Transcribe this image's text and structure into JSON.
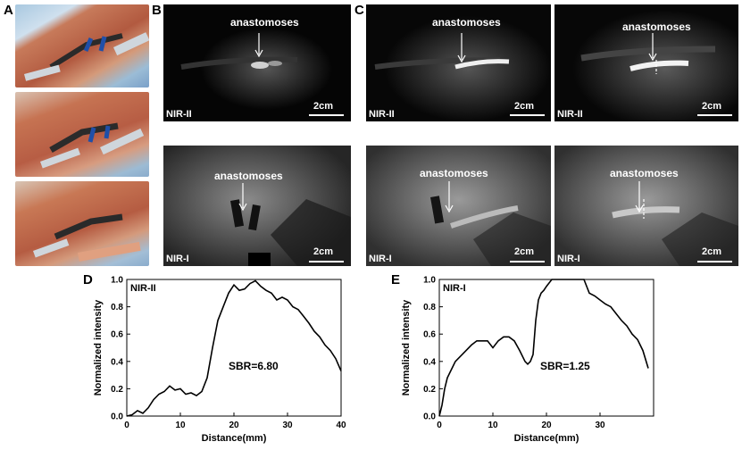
{
  "panel_labels": {
    "a": "A",
    "b": "B",
    "c": "C",
    "d": "D",
    "e": "E"
  },
  "image_panels": {
    "b_top": {
      "annotation": "anastomoses",
      "modality": "NIR-II",
      "scale": "2cm"
    },
    "b_bottom": {
      "annotation": "anastomoses",
      "modality": "NIR-I",
      "scale": "2cm"
    },
    "c1_top": {
      "annotation": "anastomoses",
      "modality": "NIR-II",
      "scale": "2cm"
    },
    "c2_top": {
      "annotation": "anastomoses",
      "modality": "NIR-II",
      "scale": "2cm"
    },
    "c1_bottom": {
      "annotation": "anastomoses",
      "modality": "NIR-I",
      "scale": "2cm"
    },
    "c2_bottom": {
      "annotation": "anastomoses",
      "modality": "NIR-I",
      "scale": "2cm"
    }
  },
  "chart_data": [
    {
      "type": "line",
      "inset_label": "NIR-II",
      "annotation": "SBR=6.80",
      "xlabel": "Distance(mm)",
      "ylabel": "Normalized intensity",
      "xlim": [
        0,
        40
      ],
      "ylim": [
        0,
        1.0
      ],
      "xticks": [
        "0",
        "10",
        "20",
        "30",
        "40"
      ],
      "yticks": [
        "0.0",
        "0.2",
        "0.4",
        "0.6",
        "0.8",
        "1.0"
      ],
      "x": [
        0,
        1,
        2,
        3,
        4,
        5,
        6,
        7,
        8,
        9,
        10,
        11,
        12,
        13,
        14,
        15,
        16,
        17,
        18,
        19,
        20,
        21,
        22,
        23,
        24,
        25,
        26,
        27,
        28,
        29,
        30,
        31,
        32,
        33,
        34,
        35,
        36,
        37,
        38,
        39,
        40
      ],
      "y": [
        0.0,
        0.01,
        0.04,
        0.02,
        0.06,
        0.12,
        0.16,
        0.18,
        0.22,
        0.19,
        0.2,
        0.16,
        0.17,
        0.15,
        0.18,
        0.28,
        0.5,
        0.7,
        0.8,
        0.9,
        0.96,
        0.92,
        0.93,
        0.97,
        0.99,
        0.95,
        0.92,
        0.9,
        0.85,
        0.87,
        0.85,
        0.8,
        0.78,
        0.73,
        0.68,
        0.62,
        0.58,
        0.52,
        0.48,
        0.42,
        0.33
      ]
    },
    {
      "type": "line",
      "inset_label": "NIR-I",
      "annotation": "SBR=1.25",
      "xlabel": "Distance(mm)",
      "ylabel": "Normalized intensity",
      "xlim": [
        0,
        40
      ],
      "ylim": [
        0,
        1.0
      ],
      "xticks": [
        "0",
        "10",
        "20",
        "30"
      ],
      "yticks": [
        "0.0",
        "0.2",
        "0.4",
        "0.6",
        "0.8",
        "1.0"
      ],
      "x": [
        0,
        0.5,
        1,
        1.5,
        2,
        3,
        4,
        5,
        6,
        7,
        8,
        9,
        10,
        11,
        12,
        13,
        14,
        15,
        16,
        16.5,
        17,
        17.5,
        18,
        18.5,
        19,
        19.5,
        20,
        21,
        22,
        23,
        24,
        25,
        26,
        27,
        28,
        29,
        30,
        31,
        32,
        33,
        34,
        35,
        36,
        37,
        38,
        39
      ],
      "y": [
        0.0,
        0.08,
        0.2,
        0.28,
        0.32,
        0.4,
        0.44,
        0.48,
        0.52,
        0.55,
        0.55,
        0.55,
        0.5,
        0.55,
        0.58,
        0.58,
        0.55,
        0.48,
        0.4,
        0.38,
        0.4,
        0.45,
        0.7,
        0.85,
        0.9,
        0.92,
        0.95,
        1.0,
        1.0,
        1.0,
        1.0,
        1.0,
        1.0,
        1.0,
        0.9,
        0.88,
        0.85,
        0.82,
        0.8,
        0.75,
        0.7,
        0.66,
        0.6,
        0.56,
        0.48,
        0.35
      ]
    }
  ]
}
